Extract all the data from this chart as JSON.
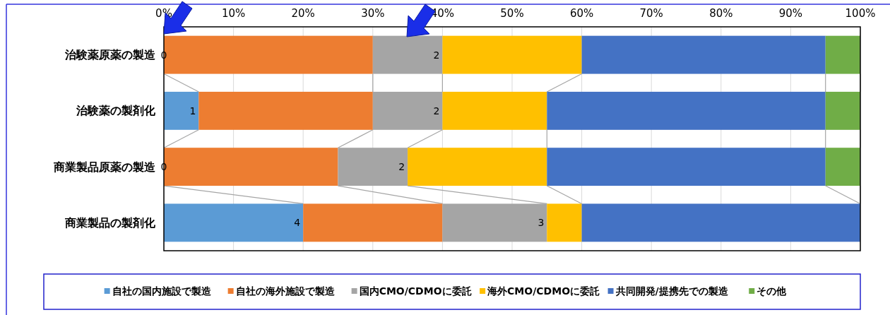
{
  "chart_data": {
    "type": "bar",
    "orientation": "horizontal",
    "stacked": true,
    "categories": [
      "治験薬原薬の製造",
      "治験薬の製剤化",
      "商業製品原薬の製造",
      "商業製品の製剤化"
    ],
    "series": [
      {
        "name": "自社の国内施設で製造",
        "color": "#5b9bd5",
        "values": [
          0,
          5,
          0,
          20
        ]
      },
      {
        "name": "自社の海外施設で製造",
        "color": "#ed7d31",
        "values": [
          30,
          25,
          25,
          20
        ]
      },
      {
        "name": "国内CMO/CDMOに委託",
        "color": "#a5a5a5",
        "values": [
          10,
          10,
          10,
          15
        ]
      },
      {
        "name": "海外CMO/CDMOに委託",
        "color": "#ffc000",
        "values": [
          20,
          15,
          20,
          5
        ]
      },
      {
        "name": "共同開発/提携先での製造",
        "color": "#4472c4",
        "values": [
          35,
          40,
          40,
          40
        ]
      },
      {
        "name": "その他",
        "color": "#70ad47",
        "values": [
          5,
          5,
          5,
          0
        ]
      }
    ],
    "annotations": [
      {
        "text": "0",
        "x": 0,
        "y": "治験薬原薬の製造"
      },
      {
        "text": "2",
        "x": 40,
        "y": "治験薬原薬の製造"
      },
      {
        "text": "1",
        "x": 5,
        "y": "治験薬の製剤化"
      },
      {
        "text": "2",
        "x": 40,
        "y": "治験薬の製剤化"
      },
      {
        "text": "0",
        "x": 0,
        "y": "商業製品原薬の製造"
      },
      {
        "text": "2",
        "x": 35,
        "y": "商業製品原薬の製造"
      },
      {
        "text": "4",
        "x": 20,
        "y": "商業製品の製剤化"
      },
      {
        "text": "3",
        "x": 55,
        "y": "商業製品の製剤化"
      }
    ],
    "xlim": [
      0,
      100
    ],
    "xticks": [
      {
        "value": 0,
        "label": "0%"
      },
      {
        "value": 10,
        "label": "10%"
      },
      {
        "value": 20,
        "label": "20%"
      },
      {
        "value": 30,
        "label": "30%"
      },
      {
        "value": 40,
        "label": "40%"
      },
      {
        "value": 50,
        "label": "50%"
      },
      {
        "value": 60,
        "label": "60%"
      },
      {
        "value": 70,
        "label": "70%"
      },
      {
        "value": 80,
        "label": "80%"
      },
      {
        "value": 90,
        "label": "90%"
      },
      {
        "value": 100,
        "label": "100%"
      }
    ],
    "grid": "x",
    "legend": "bottom"
  }
}
